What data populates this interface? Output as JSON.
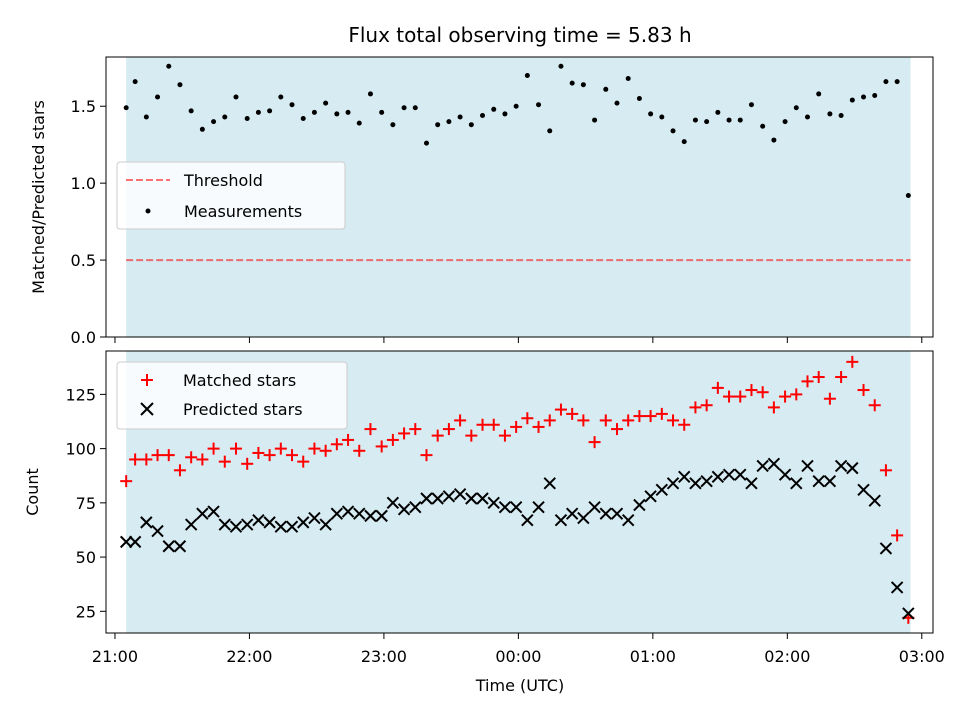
{
  "chart_data": [
    {
      "type": "scatter",
      "title": "Flux total observing time = 5.83 h",
      "xlabel": "",
      "ylabel": "Matched/Predicted stars",
      "xlim": [
        "20:56",
        "03:05"
      ],
      "ylim": [
        0,
        1.82
      ],
      "yticks": [
        "0.0",
        "0.5",
        "1.0",
        "1.5"
      ],
      "shaded_interval": [
        "21:05",
        "02:55"
      ],
      "threshold": 0.5,
      "legend_position": "center-left",
      "legend": [
        "Threshold",
        "Measurements"
      ],
      "series": [
        {
          "name": "Measurements",
          "x": [
            "21:05",
            "21:09",
            "21:14",
            "21:19",
            "21:24",
            "21:29",
            "21:34",
            "21:39",
            "21:44",
            "21:49",
            "21:54",
            "21:59",
            "22:04",
            "22:09",
            "22:14",
            "22:19",
            "22:24",
            "22:29",
            "22:34",
            "22:39",
            "22:44",
            "22:49",
            "22:54",
            "22:59",
            "23:04",
            "23:09",
            "23:14",
            "23:19",
            "23:24",
            "23:29",
            "23:34",
            "23:39",
            "23:44",
            "23:49",
            "23:54",
            "23:59",
            "24:04",
            "24:09",
            "24:14",
            "24:19",
            "24:24",
            "24:29",
            "24:34",
            "24:39",
            "24:44",
            "24:49",
            "24:54",
            "24:59",
            "25:04",
            "25:09",
            "25:14",
            "25:19",
            "25:24",
            "25:29",
            "25:34",
            "25:39",
            "25:44",
            "25:49",
            "25:54",
            "25:59",
            "26:04",
            "26:09",
            "26:14",
            "26:19",
            "26:24",
            "26:29",
            "26:34",
            "26:39",
            "26:44",
            "26:49",
            "26:54"
          ],
          "y": [
            1.49,
            1.66,
            1.43,
            1.56,
            1.76,
            1.64,
            1.47,
            1.35,
            1.4,
            1.43,
            1.56,
            1.42,
            1.46,
            1.47,
            1.56,
            1.51,
            1.42,
            1.46,
            1.52,
            1.45,
            1.46,
            1.39,
            1.58,
            1.46,
            1.38,
            1.49,
            1.49,
            1.26,
            1.38,
            1.4,
            1.43,
            1.38,
            1.44,
            1.48,
            1.45,
            1.5,
            1.7,
            1.51,
            1.34,
            1.76,
            1.65,
            1.64,
            1.41,
            1.61,
            1.52,
            1.68,
            1.55,
            1.45,
            1.43,
            1.34,
            1.27,
            1.41,
            1.4,
            1.46,
            1.41,
            1.41,
            1.51,
            1.37,
            1.28,
            1.4,
            1.49,
            1.43,
            1.58,
            1.45,
            1.44,
            1.54,
            1.56,
            1.57,
            1.66,
            1.66,
            0.92
          ]
        }
      ]
    },
    {
      "type": "scatter",
      "title": "",
      "xlabel": "Time (UTC)",
      "ylabel": "Count",
      "xlim": [
        "20:56",
        "03:05"
      ],
      "ylim": [
        15,
        145
      ],
      "xticks": [
        "21:00",
        "22:00",
        "23:00",
        "00:00",
        "01:00",
        "02:00",
        "03:00"
      ],
      "yticks": [
        "25",
        "50",
        "75",
        "100",
        "125"
      ],
      "shaded_interval": [
        "21:05",
        "02:55"
      ],
      "legend_position": "upper-left",
      "legend": [
        "Matched stars",
        "Predicted stars"
      ],
      "series": [
        {
          "name": "Matched stars",
          "x": [
            "21:05",
            "21:09",
            "21:14",
            "21:19",
            "21:24",
            "21:29",
            "21:34",
            "21:39",
            "21:44",
            "21:49",
            "21:54",
            "21:59",
            "22:04",
            "22:09",
            "22:14",
            "22:19",
            "22:24",
            "22:29",
            "22:34",
            "22:39",
            "22:44",
            "22:49",
            "22:54",
            "22:59",
            "23:04",
            "23:09",
            "23:14",
            "23:19",
            "23:24",
            "23:29",
            "23:34",
            "23:39",
            "23:44",
            "23:49",
            "23:54",
            "23:59",
            "24:04",
            "24:09",
            "24:14",
            "24:19",
            "24:24",
            "24:29",
            "24:34",
            "24:39",
            "24:44",
            "24:49",
            "24:54",
            "24:59",
            "25:04",
            "25:09",
            "25:14",
            "25:19",
            "25:24",
            "25:29",
            "25:34",
            "25:39",
            "25:44",
            "25:49",
            "25:54",
            "25:59",
            "26:04",
            "26:09",
            "26:14",
            "26:19",
            "26:24",
            "26:29",
            "26:34",
            "26:39",
            "26:44",
            "26:49",
            "26:54"
          ],
          "y": [
            85,
            95,
            95,
            97,
            97,
            90,
            96,
            95,
            100,
            94,
            100,
            93,
            98,
            97,
            100,
            97,
            94,
            100,
            99,
            102,
            104,
            99,
            109,
            101,
            104,
            107,
            109,
            97,
            106,
            109,
            113,
            106,
            111,
            111,
            106,
            110,
            114,
            110,
            113,
            118,
            116,
            113,
            103,
            113,
            109,
            113,
            115,
            115,
            116,
            113,
            111,
            119,
            120,
            128,
            124,
            124,
            127,
            126,
            119,
            124,
            125,
            131,
            133,
            123,
            133,
            140,
            127,
            120,
            90,
            60,
            22
          ]
        },
        {
          "name": "Predicted stars",
          "x": [
            "21:05",
            "21:09",
            "21:14",
            "21:19",
            "21:24",
            "21:29",
            "21:34",
            "21:39",
            "21:44",
            "21:49",
            "21:54",
            "21:59",
            "22:04",
            "22:09",
            "22:14",
            "22:19",
            "22:24",
            "22:29",
            "22:34",
            "22:39",
            "22:44",
            "22:49",
            "22:54",
            "22:59",
            "23:04",
            "23:09",
            "23:14",
            "23:19",
            "23:24",
            "23:29",
            "23:34",
            "23:39",
            "23:44",
            "23:49",
            "23:54",
            "23:59",
            "24:04",
            "24:09",
            "24:14",
            "24:19",
            "24:24",
            "24:29",
            "24:34",
            "24:39",
            "24:44",
            "24:49",
            "24:54",
            "24:59",
            "25:04",
            "25:09",
            "25:14",
            "25:19",
            "25:24",
            "25:29",
            "25:34",
            "25:39",
            "25:44",
            "25:49",
            "25:54",
            "25:59",
            "26:04",
            "26:09",
            "26:14",
            "26:19",
            "26:24",
            "26:29",
            "26:34",
            "26:39",
            "26:44",
            "26:49",
            "26:54"
          ],
          "y": [
            57,
            57,
            66,
            62,
            55,
            55,
            65,
            70,
            71,
            65,
            64,
            65,
            67,
            66,
            64,
            64,
            66,
            68,
            65,
            70,
            71,
            70,
            69,
            69,
            75,
            72,
            73,
            77,
            77,
            78,
            79,
            77,
            77,
            75,
            73,
            73,
            67,
            73,
            84,
            67,
            70,
            68,
            73,
            70,
            70,
            67,
            74,
            78,
            81,
            84,
            87,
            84,
            85,
            87,
            88,
            88,
            84,
            92,
            93,
            88,
            84,
            92,
            85,
            85,
            92,
            91,
            81,
            76,
            54,
            36,
            24
          ]
        }
      ]
    }
  ],
  "legend_labels": {
    "threshold": "Threshold",
    "measurements": "Measurements",
    "matched": "Matched stars",
    "predicted": "Predicted stars"
  },
  "colors": {
    "shade": "#add8e6",
    "threshold": "#ff0000",
    "measurements": "#000000",
    "matched": "#ff0000",
    "predicted": "#000000"
  }
}
